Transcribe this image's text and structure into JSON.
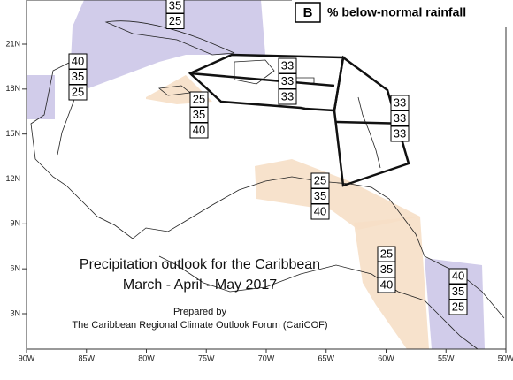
{
  "legend": {
    "key": "B",
    "label": "% below-normal rainfall"
  },
  "title": {
    "line1": "Precipitation outlook for the Caribbean",
    "line2": "March - April - May 2017",
    "prepared": "Prepared by",
    "forum": "The Caribbean Regional Climate Outlook Forum (CariCOF)"
  },
  "axes": {
    "x_labels": [
      "90W",
      "85W",
      "80W",
      "75W",
      "70W",
      "65W",
      "60W",
      "55W",
      "50W"
    ],
    "y_labels": [
      "21N",
      "18N",
      "15N",
      "12N",
      "9N",
      "6N",
      "3N"
    ]
  },
  "regions": [
    {
      "probabilities": [
        "35",
        "25"
      ]
    },
    {
      "probabilities": [
        "40",
        "35",
        "25"
      ]
    },
    {
      "probabilities": [
        "25",
        "35",
        "40"
      ]
    },
    {
      "probabilities": [
        "33",
        "33",
        "33"
      ]
    },
    {
      "probabilities": [
        "33",
        "33",
        "33"
      ]
    },
    {
      "probabilities": [
        "25",
        "35",
        "40"
      ]
    },
    {
      "probabilities": [
        "25",
        "35",
        "40"
      ]
    },
    {
      "probabilities": [
        "40",
        "35",
        "25"
      ]
    }
  ]
}
